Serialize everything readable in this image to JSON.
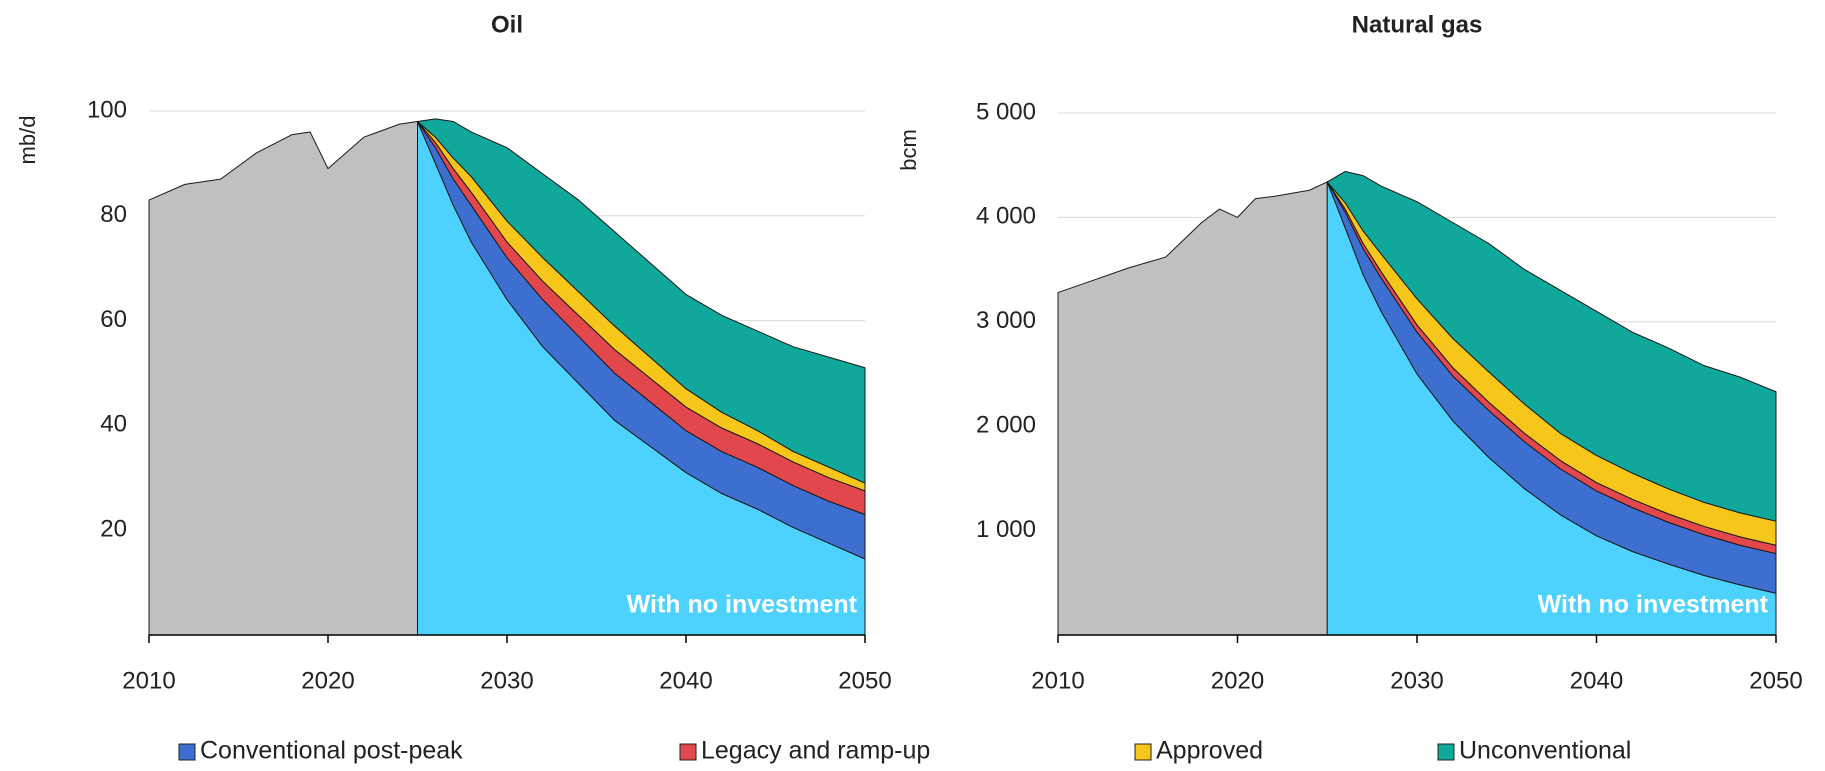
{
  "chart_data": [
    {
      "type": "stacked-area",
      "title": "Oil",
      "y_label": "mb/d",
      "annotation": "With no investment",
      "x": [
        2010,
        2012,
        2014,
        2016,
        2018,
        2019,
        2020,
        2022,
        2024,
        2025,
        2026,
        2027,
        2028,
        2030,
        2032,
        2034,
        2036,
        2038,
        2040,
        2042,
        2044,
        2046,
        2048,
        2050
      ],
      "xlim": [
        2010,
        2050
      ],
      "xticks": [
        2010,
        2020,
        2030,
        2040,
        2050
      ],
      "ylim": [
        0,
        100
      ],
      "yticks": [
        20,
        40,
        60,
        80,
        100
      ],
      "grid": true,
      "series": [
        {
          "color": "#c0c0c0",
          "stack": false,
          "values": [
            83,
            86,
            87,
            92,
            95.5,
            96,
            89,
            95,
            97.5,
            98,
            null,
            null,
            null,
            null,
            null,
            null,
            null,
            null,
            null,
            null,
            null,
            null,
            null,
            null
          ]
        },
        {
          "color": "#4dd2ff",
          "values": [
            null,
            null,
            null,
            null,
            null,
            null,
            null,
            null,
            null,
            98,
            90,
            82,
            75,
            64,
            55,
            48,
            41,
            36,
            31,
            27,
            24,
            20.5,
            17.5,
            14.5
          ]
        },
        {
          "name": "Conventional post-peak",
          "color": "#3d6fd1",
          "values": [
            null,
            null,
            null,
            null,
            null,
            null,
            null,
            null,
            null,
            0,
            3,
            5,
            7,
            8,
            9,
            9,
            9,
            8.5,
            8,
            8,
            8,
            8,
            8,
            8.5
          ]
        },
        {
          "name": "Legacy and ramp-up",
          "color": "#e2474b",
          "values": [
            null,
            null,
            null,
            null,
            null,
            null,
            null,
            null,
            null,
            0,
            1,
            2,
            2.5,
            3,
            3.5,
            4,
            4.5,
            4.5,
            4.5,
            4.5,
            4.5,
            4.5,
            4.5,
            4.5
          ]
        },
        {
          "name": "Approved",
          "color": "#f6c71a",
          "values": [
            null,
            null,
            null,
            null,
            null,
            null,
            null,
            null,
            null,
            0,
            1,
            2,
            3,
            4,
            4.5,
            4.5,
            4.5,
            4,
            3.5,
            3,
            2.5,
            2,
            2,
            1.5
          ]
        },
        {
          "name": "Unconventional",
          "color": "#10a89a",
          "values": [
            null,
            null,
            null,
            null,
            null,
            null,
            null,
            null,
            null,
            0,
            3.5,
            7,
            8.5,
            14,
            16,
            17.5,
            18,
            18,
            18,
            18.5,
            19,
            20,
            21,
            22
          ]
        }
      ]
    },
    {
      "type": "stacked-area",
      "title": "Natural gas",
      "y_label": "bcm",
      "annotation": "With no investment",
      "x": [
        2010,
        2012,
        2014,
        2016,
        2018,
        2019,
        2020,
        2021,
        2022,
        2024,
        2025,
        2026,
        2027,
        2028,
        2030,
        2032,
        2034,
        2036,
        2038,
        2040,
        2042,
        2044,
        2046,
        2048,
        2050
      ],
      "xlim": [
        2010,
        2050
      ],
      "xticks": [
        2010,
        2020,
        2030,
        2040,
        2050
      ],
      "ylim": [
        0,
        5000
      ],
      "yticks": [
        {
          "value": 1000,
          "label": "1 000"
        },
        {
          "value": 2000,
          "label": "2 000"
        },
        {
          "value": 3000,
          "label": "3 000"
        },
        {
          "value": 4000,
          "label": "4 000"
        },
        {
          "value": 5000,
          "label": "5 000"
        }
      ],
      "grid": true,
      "series": [
        {
          "color": "#c0c0c0",
          "stack": false,
          "values": [
            3280,
            3400,
            3520,
            3620,
            3950,
            4080,
            4000,
            4180,
            4200,
            4260,
            4340,
            null,
            null,
            null,
            null,
            null,
            null,
            null,
            null,
            null,
            null,
            null,
            null,
            null,
            null
          ]
        },
        {
          "color": "#4dd2ff",
          "values": [
            null,
            null,
            null,
            null,
            null,
            null,
            null,
            null,
            null,
            null,
            4340,
            3900,
            3450,
            3100,
            2500,
            2050,
            1700,
            1400,
            1150,
            950,
            800,
            680,
            570,
            480,
            400
          ]
        },
        {
          "color": "#3d6fd1",
          "values": [
            null,
            null,
            null,
            null,
            null,
            null,
            null,
            null,
            null,
            null,
            0,
            150,
            250,
            320,
            400,
            430,
            450,
            450,
            440,
            430,
            420,
            400,
            390,
            380,
            380
          ]
        },
        {
          "color": "#e2474b",
          "values": [
            null,
            null,
            null,
            null,
            null,
            null,
            null,
            null,
            null,
            null,
            0,
            30,
            50,
            60,
            70,
            80,
            80,
            80,
            80,
            80,
            80,
            80,
            80,
            80,
            80
          ]
        },
        {
          "color": "#f6c71a",
          "values": [
            null,
            null,
            null,
            null,
            null,
            null,
            null,
            null,
            null,
            null,
            0,
            60,
            120,
            170,
            250,
            280,
            290,
            280,
            260,
            260,
            250,
            240,
            230,
            230,
            230
          ]
        },
        {
          "color": "#10a89a",
          "values": [
            null,
            null,
            null,
            null,
            null,
            null,
            null,
            null,
            null,
            null,
            0,
            300,
            530,
            650,
            930,
            1110,
            1230,
            1290,
            1370,
            1380,
            1350,
            1350,
            1310,
            1300,
            1240
          ]
        }
      ]
    }
  ]
}
